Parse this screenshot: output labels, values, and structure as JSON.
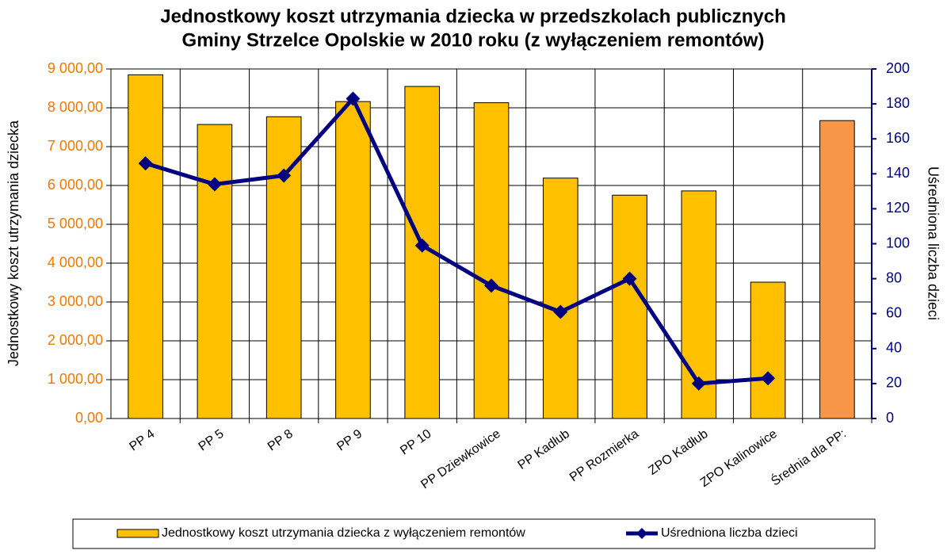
{
  "chart_data": {
    "type": "bar_line",
    "title": [
      "Jednostkowy koszt utrzymania dziecka w przedszkolach publicznych",
      "Gminy Strzelce Opolskie w 2010 roku (z wyłączeniem remontów)"
    ],
    "y_label": "Jednostkowy koszt utrzymania dziecka",
    "y2_label": "Uśredniona liczba dzieci",
    "categories": [
      "PP 4",
      "PP 5",
      "PP 8",
      "PP 9",
      "PP 10",
      "PP Dziewkowice",
      "PP Kadłub",
      "PP Rozmierka",
      "ZPO Kadłub",
      "ZPO Kalinowice",
      "Średnia dla PP:"
    ],
    "series": [
      {
        "name": "Jednostkowy koszt utrzymania dziecka z wyłączeniem remontów",
        "type": "bar",
        "color": "#FFC000",
        "colors": [
          "#FFC000",
          "#FFC000",
          "#FFC000",
          "#FFC000",
          "#FFC000",
          "#FFC000",
          "#FFC000",
          "#FFC000",
          "#FFC000",
          "#FFC000",
          "#F79646"
        ],
        "values": [
          8850,
          7570,
          7770,
          8160,
          8550,
          8130,
          6190,
          5750,
          5860,
          3510,
          7670
        ]
      },
      {
        "name": "Uśredniona liczba dzieci",
        "type": "line",
        "axis": "y2",
        "color": "#000080",
        "values": [
          146,
          134,
          139,
          183,
          99,
          76,
          61,
          80,
          20,
          23,
          null
        ]
      }
    ],
    "ylim": [
      0,
      9000
    ],
    "yticks": [
      {
        "value": 0,
        "label": "0,00"
      },
      {
        "value": 1000,
        "label": "1 000,00"
      },
      {
        "value": 2000,
        "label": "2 000,00"
      },
      {
        "value": 3000,
        "label": "3 000,00"
      },
      {
        "value": 4000,
        "label": "4 000,00"
      },
      {
        "value": 5000,
        "label": "5 000,00"
      },
      {
        "value": 6000,
        "label": "6 000,00"
      },
      {
        "value": 7000,
        "label": "7 000,00"
      },
      {
        "value": 8000,
        "label": "8 000,00"
      },
      {
        "value": 9000,
        "label": "9 000,00"
      }
    ],
    "y2lim": [
      0,
      200
    ],
    "y2ticks": [
      0,
      20,
      40,
      60,
      80,
      100,
      120,
      140,
      160,
      180,
      200
    ],
    "grid": true,
    "legend": "bottom"
  }
}
